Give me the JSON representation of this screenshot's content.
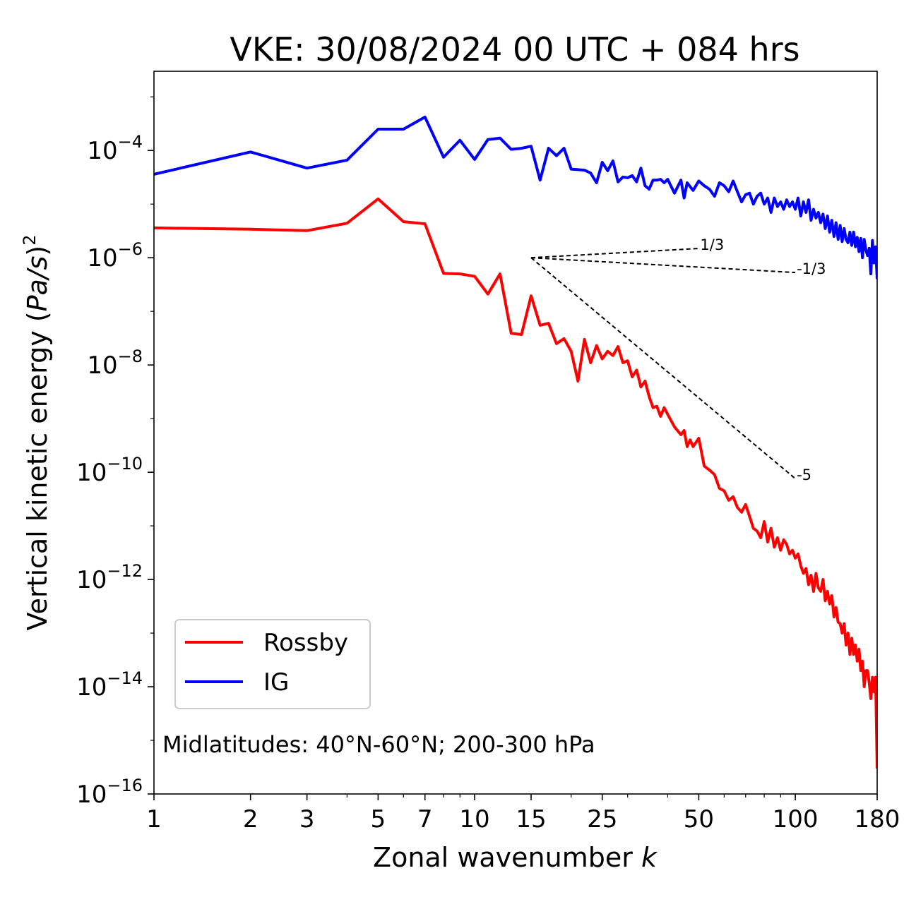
{
  "chart_data": {
    "type": "line",
    "title": "VKE: 30/08/2024 00 UTC + 084 hrs",
    "xlabel": "Zonal wavenumber k",
    "ylabel": "Vertical kinetic energy (Pa/s)^2",
    "x_scale": "log",
    "y_scale": "log",
    "xlim": [
      1,
      180
    ],
    "ylim": [
      1e-16,
      0.003
    ],
    "x_ticks": [
      {
        "value": 1,
        "label": "1"
      },
      {
        "value": 2,
        "label": "2"
      },
      {
        "value": 3,
        "label": "3"
      },
      {
        "value": 5,
        "label": "5"
      },
      {
        "value": 7,
        "label": "7"
      },
      {
        "value": 10,
        "label": "10"
      },
      {
        "value": 15,
        "label": "15"
      },
      {
        "value": 25,
        "label": "25"
      },
      {
        "value": 50,
        "label": "50"
      },
      {
        "value": 100,
        "label": "100"
      },
      {
        "value": 180,
        "label": "180"
      }
    ],
    "y_ticks": [
      {
        "exp": -4,
        "base": "10",
        "sup": "−4"
      },
      {
        "exp": -6,
        "base": "10",
        "sup": "−6"
      },
      {
        "exp": -8,
        "base": "10",
        "sup": "−8"
      },
      {
        "exp": -10,
        "base": "10",
        "sup": "−10"
      },
      {
        "exp": -12,
        "base": "10",
        "sup": "−12"
      },
      {
        "exp": -14,
        "base": "10",
        "sup": "−14"
      },
      {
        "exp": -16,
        "base": "10",
        "sup": "−16"
      }
    ],
    "legend": {
      "position": "lower-left"
    },
    "annotation": "Midlatitudes: 40°N-60°N; 200-300 hPa",
    "series": [
      {
        "name": "Rossby",
        "color": "#ff0000",
        "points": [
          [
            1,
            3.6e-06
          ],
          [
            2,
            3.4e-06
          ],
          [
            3,
            3.2e-06
          ],
          [
            4,
            4.4e-06
          ],
          [
            5,
            1.25e-05
          ],
          [
            6,
            4.7e-06
          ],
          [
            7,
            4.3e-06
          ],
          [
            8,
            5.1e-07
          ],
          [
            9,
            5e-07
          ],
          [
            10,
            4.5e-07
          ],
          [
            11,
            2.1e-07
          ],
          [
            12,
            5e-07
          ],
          [
            13,
            3.9e-08
          ],
          [
            14,
            3.7e-08
          ],
          [
            15,
            1.95e-07
          ],
          [
            16,
            5.5e-08
          ],
          [
            17,
            6e-08
          ],
          [
            18,
            2.5e-08
          ],
          [
            19,
            3.1e-08
          ],
          [
            20,
            1.8e-08
          ],
          [
            21,
            5e-09
          ],
          [
            22,
            3e-08
          ],
          [
            23,
            1.1e-08
          ],
          [
            24,
            2.3e-08
          ],
          [
            25,
            1.3e-08
          ],
          [
            26,
            1.8e-08
          ],
          [
            27,
            1.5e-08
          ],
          [
            28,
            2.2e-08
          ],
          [
            29,
            1.1e-08
          ],
          [
            30,
            1.2e-08
          ],
          [
            31,
            6e-09
          ],
          [
            32,
            8e-09
          ],
          [
            33,
            3.9e-09
          ],
          [
            34,
            5e-09
          ],
          [
            35,
            2.6e-09
          ],
          [
            36,
            1.6e-09
          ],
          [
            37,
            1.7e-09
          ],
          [
            38,
            1.1e-09
          ],
          [
            39,
            1.6e-09
          ],
          [
            40,
            1.2e-09
          ],
          [
            42,
            7e-10
          ],
          [
            44,
            5e-10
          ],
          [
            45,
            6e-10
          ],
          [
            46,
            3e-10
          ],
          [
            47,
            4e-10
          ],
          [
            48,
            3e-10
          ],
          [
            50,
            4.3e-10
          ],
          [
            52,
            1.3e-10
          ],
          [
            54,
            1.1e-10
          ],
          [
            56,
            9e-11
          ],
          [
            58,
            5e-11
          ],
          [
            60,
            4.5e-11
          ],
          [
            62,
            3e-11
          ],
          [
            64,
            3.5e-11
          ],
          [
            66,
            2.2e-11
          ],
          [
            68,
            1.8e-11
          ],
          [
            70,
            2.5e-11
          ],
          [
            72,
            1.5e-11
          ],
          [
            74,
            9e-12
          ],
          [
            76,
            8e-12
          ],
          [
            78,
            6e-12
          ],
          [
            80,
            1.2e-11
          ],
          [
            82,
            5e-12
          ],
          [
            84,
            9e-12
          ],
          [
            86,
            4e-12
          ],
          [
            88,
            6e-12
          ],
          [
            90,
            3.5e-12
          ],
          [
            92,
            5.5e-12
          ],
          [
            94,
            4.5e-12
          ],
          [
            96,
            3e-12
          ],
          [
            98,
            3.5e-12
          ],
          [
            100,
            2.5e-12
          ],
          [
            102,
            3e-12
          ],
          [
            104,
            1.8e-12
          ],
          [
            106,
            1.3e-12
          ],
          [
            108,
            1.6e-12
          ],
          [
            110,
            8e-13
          ],
          [
            112,
            1.2e-12
          ],
          [
            114,
            6e-13
          ],
          [
            116,
            1.3e-12
          ],
          [
            118,
            7e-13
          ],
          [
            120,
            6e-13
          ],
          [
            122,
            1e-12
          ],
          [
            124,
            4e-13
          ],
          [
            126,
            6e-13
          ],
          [
            128,
            3.5e-13
          ],
          [
            130,
            5e-13
          ],
          [
            132,
            2e-13
          ],
          [
            134,
            3e-13
          ],
          [
            136,
            1.6e-13
          ],
          [
            138,
            1.5e-13
          ],
          [
            140,
            1e-13
          ],
          [
            142,
            1.5e-13
          ],
          [
            144,
            6e-14
          ],
          [
            146,
            1e-13
          ],
          [
            148,
            4e-14
          ],
          [
            150,
            8e-14
          ],
          [
            152,
            4e-14
          ],
          [
            154,
            6e-14
          ],
          [
            156,
            3e-14
          ],
          [
            158,
            5e-14
          ],
          [
            160,
            2e-14
          ],
          [
            162,
            3e-14
          ],
          [
            164,
            1e-14
          ],
          [
            166,
            2e-14
          ],
          [
            168,
            2e-14
          ],
          [
            170,
            1.2e-14
          ],
          [
            172,
            6e-15
          ],
          [
            174,
            1.5e-14
          ],
          [
            176,
            8e-15
          ],
          [
            178,
            1.5e-14
          ],
          [
            180,
            3e-16
          ]
        ]
      },
      {
        "name": "IG",
        "color": "#0000ff",
        "points": [
          [
            1,
            3.6e-05
          ],
          [
            2,
            9.4e-05
          ],
          [
            3,
            4.7e-05
          ],
          [
            4,
            6.6e-05
          ],
          [
            5,
            0.00025
          ],
          [
            6,
            0.00025
          ],
          [
            7,
            0.00042
          ],
          [
            8,
            7.5e-05
          ],
          [
            9,
            0.000155
          ],
          [
            10,
            6.8e-05
          ],
          [
            11,
            0.00016
          ],
          [
            12,
            0.00017
          ],
          [
            13,
            0.000105
          ],
          [
            14,
            0.00011
          ],
          [
            15,
            0.00012
          ],
          [
            16,
            2.8e-05
          ],
          [
            17,
            0.00011
          ],
          [
            18,
            8e-05
          ],
          [
            19,
            0.00011
          ],
          [
            20,
            4.5e-05
          ],
          [
            21,
            4.4e-05
          ],
          [
            22,
            4.3e-05
          ],
          [
            23,
            3.8e-05
          ],
          [
            24,
            2.5e-05
          ],
          [
            25,
            6e-05
          ],
          [
            26,
            4.2e-05
          ],
          [
            27,
            6.4e-05
          ],
          [
            28,
            2.6e-05
          ],
          [
            29,
            3.2e-05
          ],
          [
            30,
            3.1e-05
          ],
          [
            31,
            3.4e-05
          ],
          [
            32,
            2.6e-05
          ],
          [
            33,
            4.7e-05
          ],
          [
            34,
            2.2e-05
          ],
          [
            35,
            1.9e-05
          ],
          [
            36,
            2.8e-05
          ],
          [
            37,
            2.8e-05
          ],
          [
            38,
            2.9e-05
          ],
          [
            39,
            2.5e-05
          ],
          [
            40,
            2.9e-05
          ],
          [
            42,
            1.6e-05
          ],
          [
            44,
            2.8e-05
          ],
          [
            45,
            1.3e-05
          ],
          [
            46,
            2.5e-05
          ],
          [
            48,
            1.8e-05
          ],
          [
            50,
            2.7e-05
          ],
          [
            52,
            2.2e-05
          ],
          [
            54,
            1.9e-05
          ],
          [
            56,
            1.4e-05
          ],
          [
            58,
            2.5e-05
          ],
          [
            60,
            2.2e-05
          ],
          [
            62,
            1.7e-05
          ],
          [
            64,
            2.7e-05
          ],
          [
            66,
            1.7e-05
          ],
          [
            68,
            1.1e-05
          ],
          [
            70,
            1.5e-05
          ],
          [
            72,
            1.6e-05
          ],
          [
            74,
            1e-05
          ],
          [
            76,
            1.4e-05
          ],
          [
            78,
            1.6e-05
          ],
          [
            80,
            1e-05
          ],
          [
            82,
            1.3e-05
          ],
          [
            84,
            7e-06
          ],
          [
            86,
            1.3e-05
          ],
          [
            88,
            9e-06
          ],
          [
            90,
            1.1e-05
          ],
          [
            92,
            8e-06
          ],
          [
            94,
            1.2e-05
          ],
          [
            96,
            9e-06
          ],
          [
            98,
            1.1e-05
          ],
          [
            100,
            8e-06
          ],
          [
            102,
            1.3e-05
          ],
          [
            104,
            6e-06
          ],
          [
            106,
            1.1e-05
          ],
          [
            108,
            7e-06
          ],
          [
            110,
            1.2e-05
          ],
          [
            112,
            5e-06
          ],
          [
            114,
            8e-06
          ],
          [
            116,
            5.5e-06
          ],
          [
            118,
            7e-06
          ],
          [
            120,
            4.5e-06
          ],
          [
            122,
            6.5e-06
          ],
          [
            124,
            3.5e-06
          ],
          [
            126,
            6e-06
          ],
          [
            128,
            3e-06
          ],
          [
            130,
            5e-06
          ],
          [
            132,
            2.5e-06
          ],
          [
            134,
            4.5e-06
          ],
          [
            136,
            2.2e-06
          ],
          [
            138,
            4e-06
          ],
          [
            140,
            2e-06
          ],
          [
            142,
            3.5e-06
          ],
          [
            144,
            2.2e-06
          ],
          [
            146,
            1.9e-06
          ],
          [
            148,
            3e-06
          ],
          [
            150,
            1.7e-06
          ],
          [
            152,
            3e-06
          ],
          [
            154,
            1.6e-06
          ],
          [
            156,
            2.4e-06
          ],
          [
            158,
            1.3e-06
          ],
          [
            160,
            2.3e-06
          ],
          [
            162,
            1e-06
          ],
          [
            164,
            2.2e-06
          ],
          [
            166,
            1.4e-06
          ],
          [
            168,
            1.1e-06
          ],
          [
            170,
            1.5e-06
          ],
          [
            172,
            5e-07
          ],
          [
            174,
            2.1e-06
          ],
          [
            176,
            8e-07
          ],
          [
            178,
            1.6e-06
          ],
          [
            180,
            4e-07
          ]
        ]
      }
    ],
    "reference_slopes": [
      {
        "label": "1/3",
        "x": [
          15,
          50
        ],
        "y": [
          1e-06,
          1.49e-06
        ]
      },
      {
        "label": "-1/3",
        "x": [
          15,
          100
        ],
        "y": [
          1e-06,
          5.3e-07
        ]
      },
      {
        "label": "-5",
        "x": [
          15,
          100
        ],
        "y": [
          1e-06,
          7.6e-11
        ]
      }
    ]
  }
}
